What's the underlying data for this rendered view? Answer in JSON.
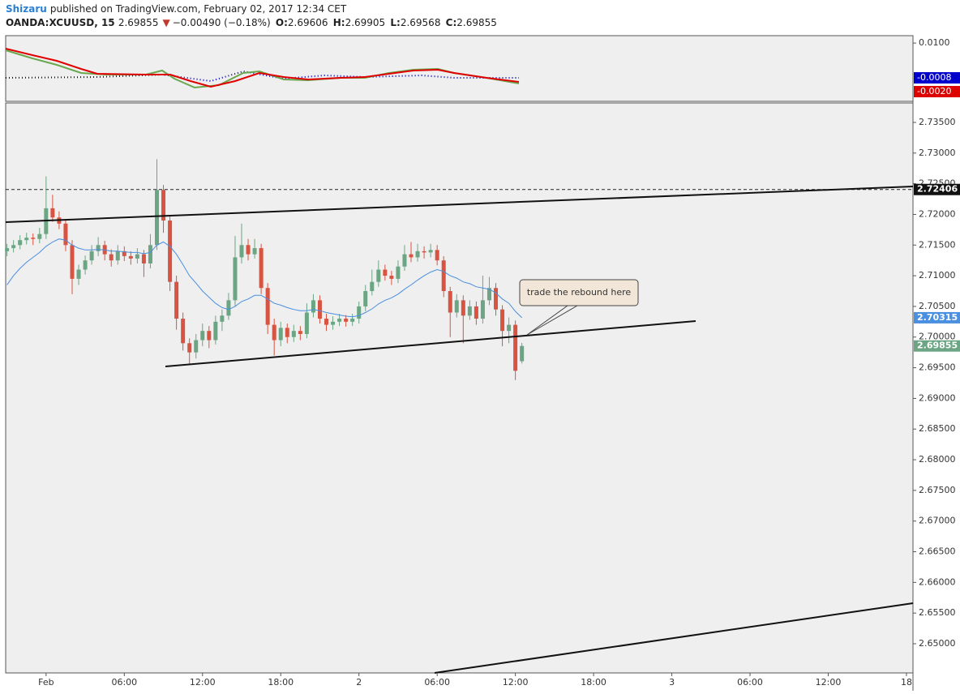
{
  "header": {
    "author": "Shizaru",
    "published": "published on TradingView.com, February 02, 2017 12:34 CET",
    "symbol": "OANDA:XCUUSD, 15",
    "change": "−0.00490 (−0.18%)",
    "o_label": "O:",
    "h_label": "H:",
    "l_label": "L:",
    "c_label": "C:"
  },
  "indicator": {
    "ylim": [
      -0.0081,
      0.0123
    ],
    "yticks": [
      {
        "value": 0.01,
        "label": "0.0100"
      }
    ],
    "values": [
      -0.0008,
      -0.002
    ],
    "value_labels": [
      "-0.0008",
      "-0.0020"
    ],
    "colors": [
      "#0000cc",
      "#dd0000"
    ]
  },
  "chart_data": {
    "type": "candlestick",
    "x": [
      -3,
      -2.5,
      -2,
      -1.5,
      -1,
      -0.5,
      0,
      0.5,
      1,
      1.5,
      2,
      2.5,
      3,
      3.5,
      4,
      4.5,
      5,
      5.5,
      6,
      6.5,
      7,
      7.5,
      8,
      8.5,
      9,
      9.5,
      10,
      10.5,
      11,
      11.5,
      12,
      12.5,
      13,
      13.5,
      14,
      14.5,
      15,
      15.5,
      16,
      16.5,
      17,
      17.5,
      18,
      18.5,
      19,
      19.5,
      20,
      20.5,
      21,
      21.5,
      22,
      22.5,
      23,
      23.5,
      24,
      24.5,
      25,
      25.5,
      26,
      26.5,
      27,
      27.5,
      28,
      28.5,
      29,
      29.5,
      30,
      30.5,
      31,
      31.5,
      32,
      32.5,
      33,
      33.5,
      34,
      34.5,
      35,
      35.5,
      36,
      36.5
    ],
    "open": [
      2.714,
      2.7145,
      2.715,
      2.7158,
      2.7162,
      2.716,
      2.7168,
      2.721,
      2.7195,
      2.7185,
      2.715,
      2.7095,
      2.711,
      2.7125,
      2.714,
      2.715,
      2.7135,
      2.7125,
      2.714,
      2.7132,
      2.7128,
      2.7135,
      2.712,
      2.715,
      2.724,
      2.719,
      2.709,
      2.703,
      2.699,
      2.6975,
      2.6995,
      2.701,
      2.6995,
      2.7025,
      2.7035,
      2.706,
      2.713,
      2.715,
      2.7135,
      2.7145,
      2.708,
      2.702,
      2.6995,
      2.7015,
      2.7,
      2.701,
      2.7005,
      2.704,
      2.706,
      2.703,
      2.702,
      2.7025,
      2.703,
      2.7025,
      2.703,
      2.705,
      2.7075,
      2.709,
      2.711,
      2.71,
      2.7095,
      2.7115,
      2.7135,
      2.713,
      2.714,
      2.7138,
      2.7142,
      2.7125,
      2.7075,
      2.704,
      2.706,
      2.7035,
      2.705,
      2.703,
      2.706,
      2.708,
      2.7045,
      2.701,
      2.702,
      2.69606
    ],
    "high": [
      2.7152,
      2.7158,
      2.7166,
      2.717,
      2.7169,
      2.7178,
      2.7262,
      2.7232,
      2.7205,
      2.7192,
      2.7158,
      2.7118,
      2.7133,
      2.715,
      2.7163,
      2.7157,
      2.7143,
      2.715,
      2.7148,
      2.714,
      2.7145,
      2.7142,
      2.7168,
      2.729,
      2.7248,
      2.7198,
      2.71,
      2.704,
      2.6998,
      2.7005,
      2.7022,
      2.7018,
      2.7035,
      2.7045,
      2.7072,
      2.7165,
      2.7185,
      2.716,
      2.716,
      2.7152,
      2.7088,
      2.703,
      2.7025,
      2.7022,
      2.702,
      2.7018,
      2.7055,
      2.707,
      2.7068,
      2.7038,
      2.7034,
      2.7038,
      2.7036,
      2.7038,
      2.7058,
      2.7085,
      2.711,
      2.7125,
      2.7118,
      2.7108,
      2.7125,
      2.715,
      2.7155,
      2.7152,
      2.7148,
      2.7152,
      2.715,
      2.7132,
      2.7082,
      2.707,
      2.7068,
      2.706,
      2.7058,
      2.71,
      2.7098,
      2.7088,
      2.7052,
      2.7032,
      2.7027,
      2.69905
    ],
    "low": [
      2.7132,
      2.7138,
      2.7143,
      2.7151,
      2.715,
      2.7153,
      2.716,
      2.7188,
      2.7176,
      2.714,
      2.707,
      2.7085,
      2.7102,
      2.7118,
      2.7132,
      2.7125,
      2.7115,
      2.7118,
      2.7124,
      2.7118,
      2.712,
      2.7098,
      2.7112,
      2.7142,
      2.717,
      2.7075,
      2.7012,
      2.6978,
      2.6955,
      2.6965,
      2.6985,
      2.6982,
      2.6988,
      2.701,
      2.7028,
      2.705,
      2.712,
      2.7125,
      2.7128,
      2.707,
      2.7005,
      2.697,
      2.6985,
      2.699,
      2.6992,
      2.6995,
      2.6998,
      2.7032,
      2.7022,
      2.701,
      2.7012,
      2.7018,
      2.7017,
      2.7018,
      2.7022,
      2.7042,
      2.7068,
      2.7082,
      2.7092,
      2.7085,
      2.7088,
      2.7108,
      2.7122,
      2.7123,
      2.7128,
      2.713,
      2.7117,
      2.7065,
      2.7,
      2.7032,
      2.699,
      2.7028,
      2.702,
      2.7022,
      2.7052,
      2.7035,
      2.6985,
      2.699,
      2.693,
      2.69568
    ],
    "close": [
      2.7145,
      2.715,
      2.7158,
      2.7162,
      2.716,
      2.7168,
      2.721,
      2.7195,
      2.7185,
      2.715,
      2.7095,
      2.711,
      2.7125,
      2.714,
      2.715,
      2.7135,
      2.7125,
      2.714,
      2.7132,
      2.7128,
      2.7135,
      2.712,
      2.715,
      2.724,
      2.719,
      2.709,
      2.703,
      2.699,
      2.6975,
      2.6995,
      2.701,
      2.6995,
      2.7025,
      2.7035,
      2.706,
      2.713,
      2.715,
      2.7135,
      2.7145,
      2.708,
      2.702,
      2.6995,
      2.7015,
      2.7,
      2.701,
      2.7005,
      2.704,
      2.706,
      2.703,
      2.702,
      2.7025,
      2.703,
      2.7025,
      2.703,
      2.705,
      2.7075,
      2.709,
      2.711,
      2.71,
      2.7095,
      2.7115,
      2.7135,
      2.713,
      2.714,
      2.7138,
      2.7142,
      2.7125,
      2.7075,
      2.704,
      2.706,
      2.7035,
      2.705,
      2.703,
      2.706,
      2.708,
      2.7045,
      2.701,
      2.702,
      2.6945,
      2.69855
    ],
    "up_color": "#6ba583",
    "down_color": "#d75442",
    "ma": {
      "color": "#4a8fe0",
      "values": [
        2.7085,
        2.71,
        2.7112,
        2.7122,
        2.713,
        2.7138,
        2.7148,
        2.7155,
        2.716,
        2.7158,
        2.715,
        2.7145,
        2.7142,
        2.7142,
        2.7143,
        2.7142,
        2.714,
        2.714,
        2.7139,
        2.7138,
        2.7138,
        2.7136,
        2.7138,
        2.715,
        2.7155,
        2.7148,
        2.7135,
        2.7118,
        2.71,
        2.7088,
        2.7075,
        2.7065,
        2.7055,
        2.7048,
        2.7045,
        2.705,
        2.7058,
        2.7062,
        2.7068,
        2.7068,
        2.7062,
        2.7055,
        2.7052,
        2.7048,
        2.7045,
        2.7043,
        2.7043,
        2.7045,
        2.7043,
        2.704,
        2.7038,
        2.7036,
        2.7034,
        2.7033,
        2.7035,
        2.704,
        2.7046,
        2.7054,
        2.706,
        2.7064,
        2.707,
        2.7078,
        2.7085,
        2.7093,
        2.71,
        2.7106,
        2.711,
        2.7107,
        2.71,
        2.7096,
        2.709,
        2.7087,
        2.7082,
        2.708,
        2.7078,
        2.7072,
        2.7062,
        2.7055,
        2.7042,
        2.70315
      ]
    },
    "price_line": 2.72406,
    "annotation": "trade the rebound here",
    "xlim": [
      -3.1,
      66.5
    ],
    "ylim": [
      2.64524,
      2.73817
    ],
    "xticks": [
      {
        "value": 0,
        "label": "Feb"
      },
      {
        "value": 6,
        "label": "06:00"
      },
      {
        "value": 12,
        "label": "12:00"
      },
      {
        "value": 18,
        "label": "18:00"
      },
      {
        "value": 24,
        "label": "2"
      },
      {
        "value": 30,
        "label": "06:00"
      },
      {
        "value": 36,
        "label": "12:00"
      },
      {
        "value": 42,
        "label": "18:00"
      },
      {
        "value": 48,
        "label": "3"
      },
      {
        "value": 54,
        "label": "06:00"
      },
      {
        "value": 60,
        "label": "12:00"
      },
      {
        "value": 66,
        "label": "18"
      }
    ],
    "yticks": [
      {
        "value": 2.65,
        "label": "2.65000"
      },
      {
        "value": 2.655,
        "label": "2.65500"
      },
      {
        "value": 2.66,
        "label": "2.66000"
      },
      {
        "value": 2.665,
        "label": "2.66500"
      },
      {
        "value": 2.67,
        "label": "2.67000"
      },
      {
        "value": 2.675,
        "label": "2.67500"
      },
      {
        "value": 2.68,
        "label": "2.68000"
      },
      {
        "value": 2.685,
        "label": "2.68500"
      },
      {
        "value": 2.69,
        "label": "2.69000"
      },
      {
        "value": 2.695,
        "label": "2.69500"
      },
      {
        "value": 2.7,
        "label": "2.70000"
      },
      {
        "value": 2.705,
        "label": "2.70500"
      },
      {
        "value": 2.71,
        "label": "2.71000"
      },
      {
        "value": 2.715,
        "label": "2.71500"
      },
      {
        "value": 2.72,
        "label": "2.72000"
      },
      {
        "value": 2.725,
        "label": "2.72500"
      },
      {
        "value": 2.73,
        "label": "2.73000"
      },
      {
        "value": 2.735,
        "label": "2.73500"
      }
    ],
    "grid": false
  }
}
